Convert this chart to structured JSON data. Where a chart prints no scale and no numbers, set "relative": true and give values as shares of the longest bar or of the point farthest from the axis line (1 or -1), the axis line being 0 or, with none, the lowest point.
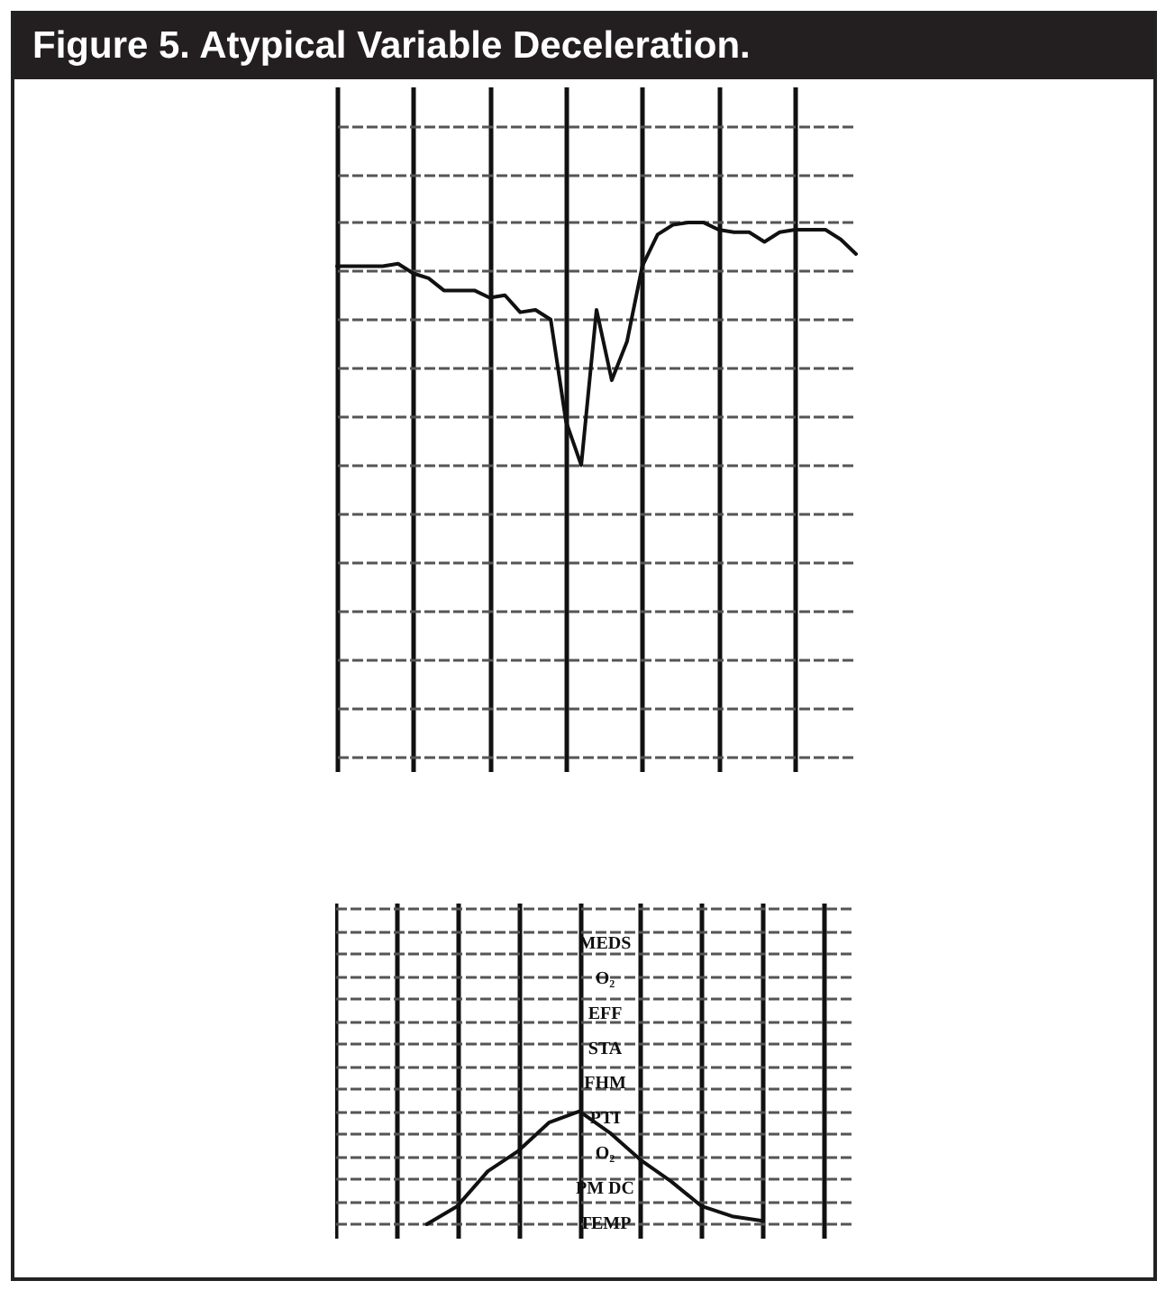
{
  "chart_data": [
    {
      "type": "line",
      "title": "Figure 5. Atypical Variable Deceleration.",
      "relative": true,
      "grid": true,
      "categories": [
        null,
        null,
        null,
        null,
        null,
        null,
        null,
        null,
        null,
        null,
        null,
        null,
        null,
        null,
        null,
        null,
        null,
        null,
        null,
        null,
        null,
        null,
        null,
        null,
        null,
        null,
        null,
        null,
        null,
        null,
        null,
        null,
        null,
        null,
        null
      ],
      "series": [
        {
          "color": "#111111",
          "values": [
            0.82,
            0.82,
            0.82,
            0.82,
            0.83,
            0.79,
            0.77,
            0.72,
            0.72,
            0.72,
            0.69,
            0.7,
            0.63,
            0.64,
            0.6,
            0.18,
            0,
            0.64,
            0.35,
            0.51,
            0.82,
            0.95,
            0.99,
            1,
            1,
            0.97,
            0.96,
            0.96,
            0.92,
            0.96,
            0.97,
            0.97,
            0.97,
            0.93,
            0.87
          ]
        }
      ]
    },
    {
      "type": "line",
      "relative": true,
      "grid": true,
      "categories": [
        null,
        null,
        null,
        null,
        null,
        null,
        null,
        null,
        null,
        null,
        null,
        null,
        null,
        null,
        null,
        null,
        null,
        null
      ],
      "series": [
        {
          "color": "#111111",
          "values": [
            null,
            null,
            null,
            0,
            0.16,
            0.47,
            0.65,
            0.9,
            1,
            0.81,
            0.57,
            0.38,
            0.16,
            0.07,
            0.03,
            null,
            null,
            null
          ]
        }
      ],
      "annotations": [
        "MEDS",
        "O₂",
        "EFF",
        "STA",
        "FHM",
        "PTI",
        "O₂",
        "PM DC",
        "TEMP"
      ]
    }
  ]
}
